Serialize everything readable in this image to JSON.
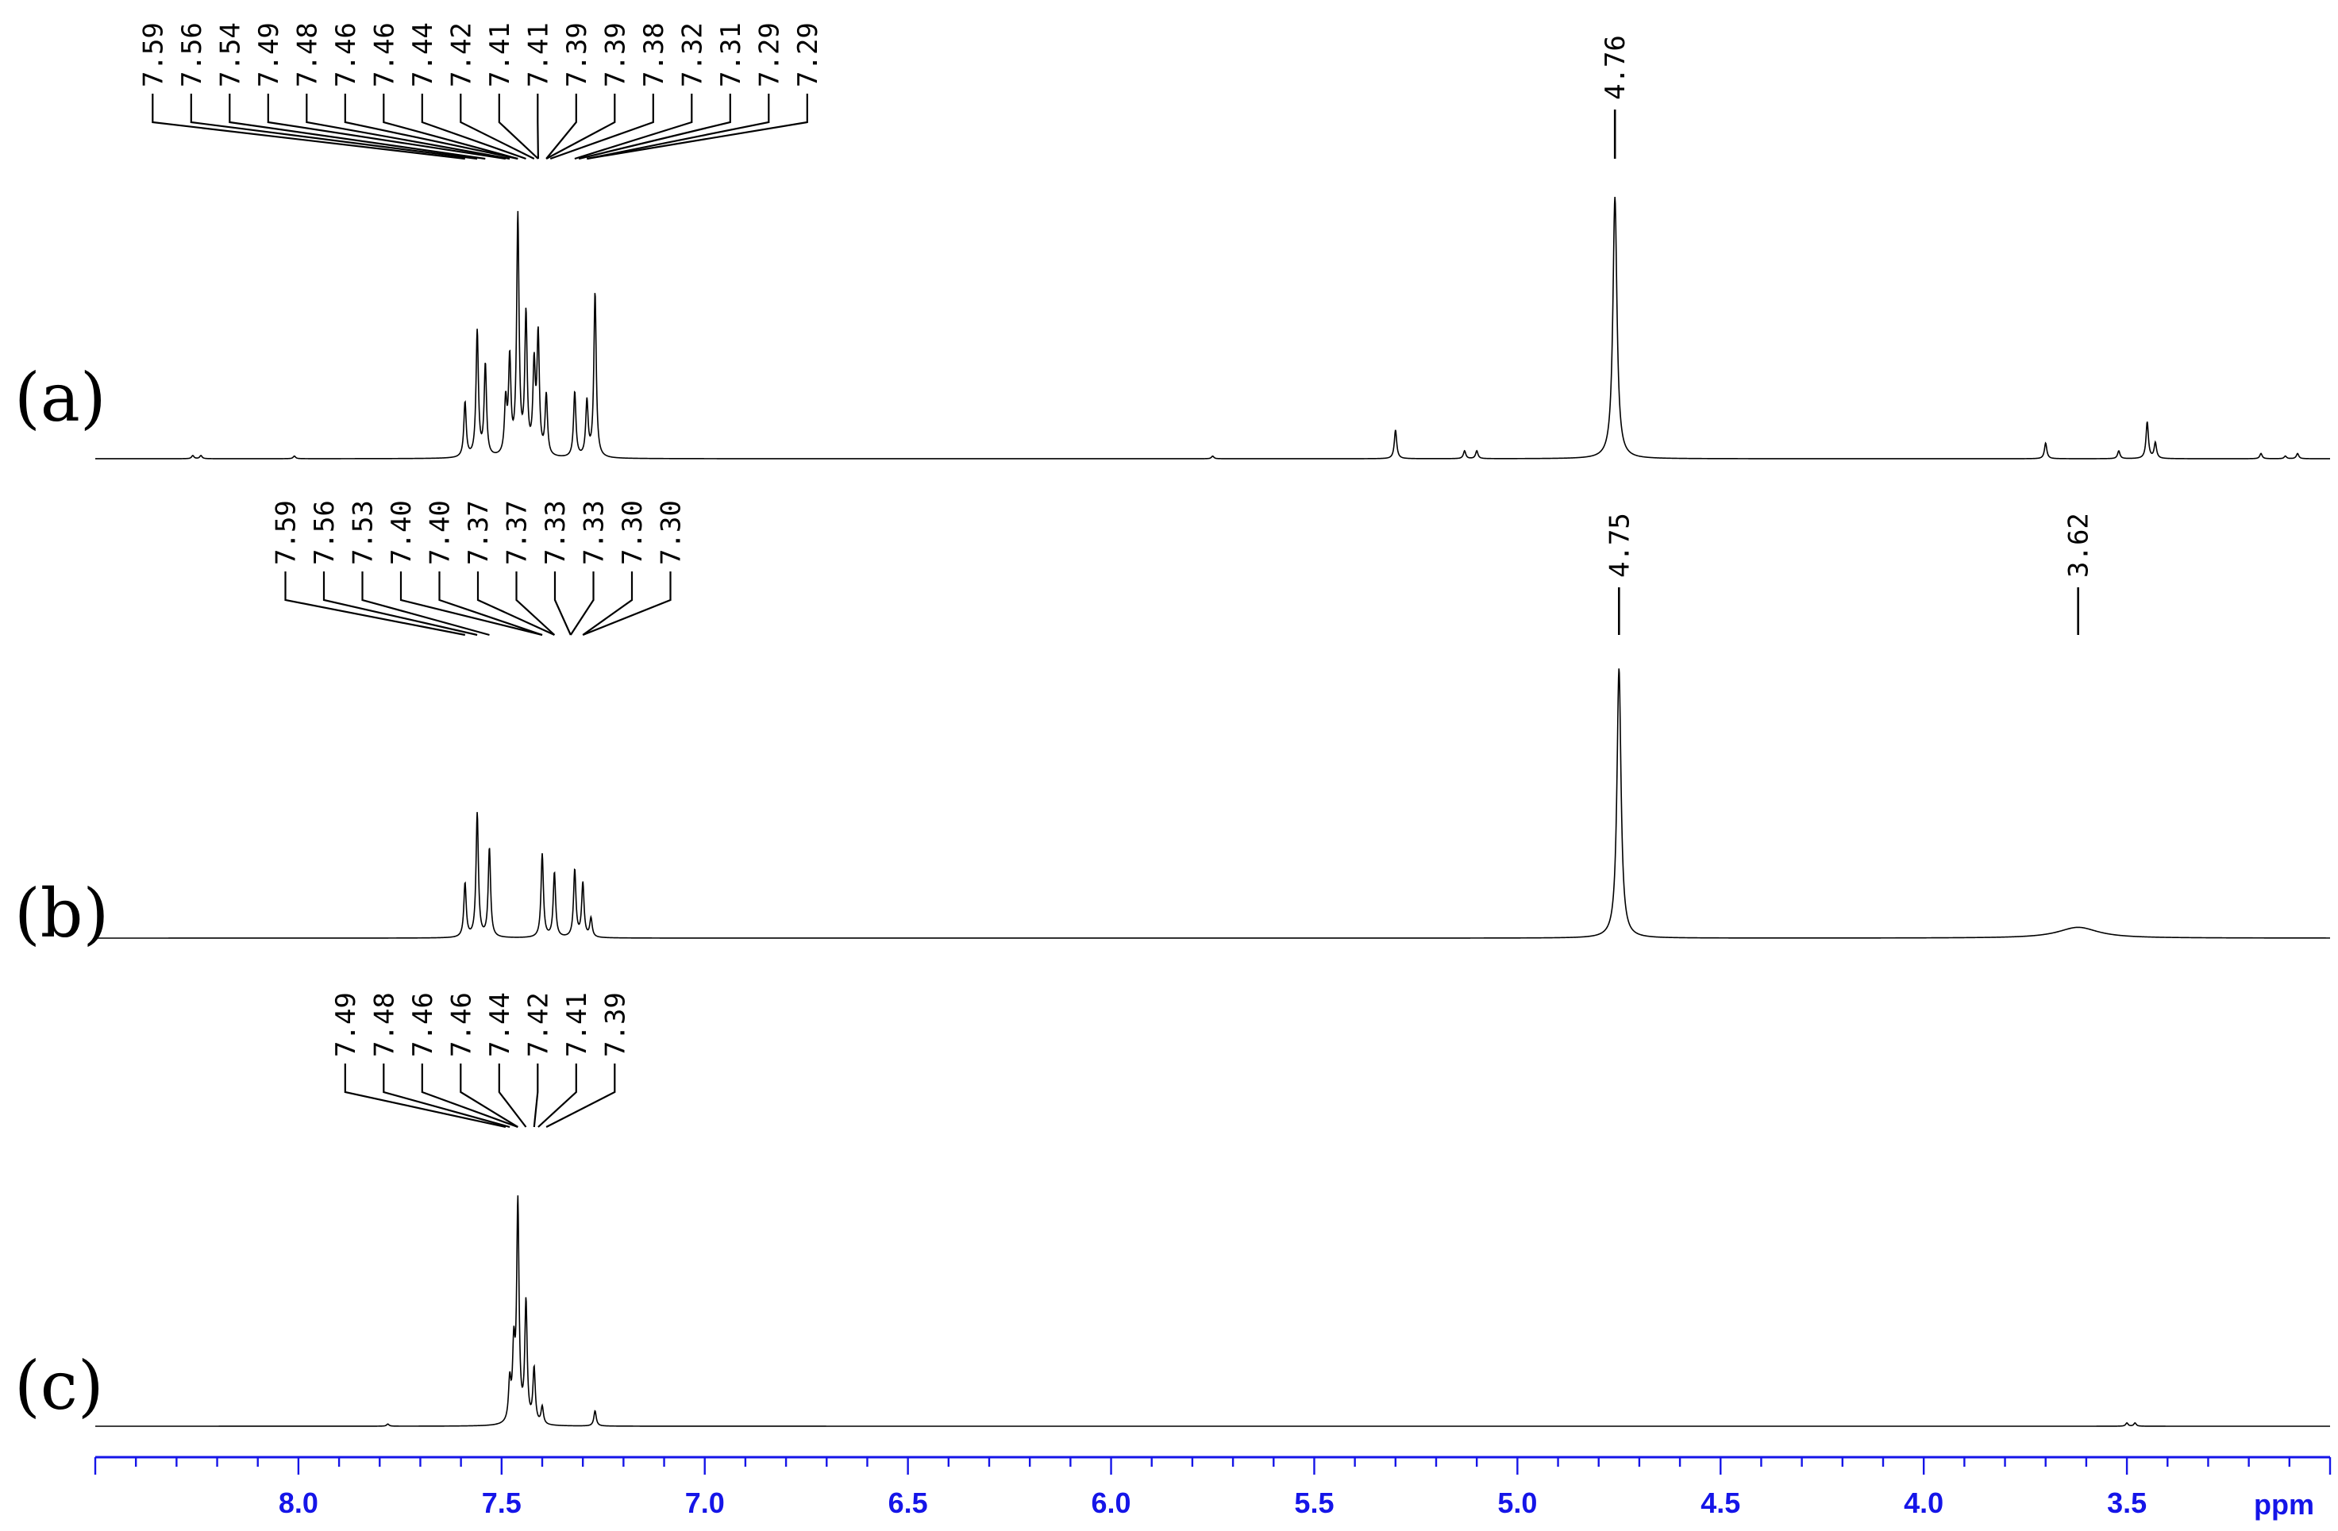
{
  "chart_data": {
    "type": "line",
    "title": "",
    "xlabel": "ppm",
    "ylabel": "",
    "xlim": [
      8.5,
      3.0
    ],
    "x_reversed": true,
    "grid": false,
    "x_ticks": [
      "8.0",
      "7.5",
      "7.0",
      "6.5",
      "6.0",
      "5.5",
      "5.0",
      "4.5",
      "4.0",
      "3.5"
    ],
    "x_tick_values": [
      8.0,
      7.5,
      7.0,
      6.5,
      6.0,
      5.5,
      5.0,
      4.5,
      4.0,
      3.5
    ],
    "axis_color": "#1515e8",
    "trace_color": "#000000",
    "panels": [
      {
        "label": "(a)",
        "peak_labels": [
          "7.59",
          "7.56",
          "7.54",
          "7.49",
          "7.48",
          "7.46",
          "7.46",
          "7.44",
          "7.42",
          "7.41",
          "7.41",
          "7.39",
          "7.39",
          "7.38",
          "7.32",
          "7.31",
          "7.29",
          "7.29",
          "4.76"
        ],
        "peaks": [
          {
            "ppm": 8.26,
            "height": 0.012
          },
          {
            "ppm": 8.24,
            "height": 0.012
          },
          {
            "ppm": 8.01,
            "height": 0.01
          },
          {
            "ppm": 7.59,
            "height": 0.21
          },
          {
            "ppm": 7.56,
            "height": 0.48
          },
          {
            "ppm": 7.54,
            "height": 0.35
          },
          {
            "ppm": 7.49,
            "height": 0.2
          },
          {
            "ppm": 7.48,
            "height": 0.36
          },
          {
            "ppm": 7.46,
            "height": 0.91
          },
          {
            "ppm": 7.44,
            "height": 0.53
          },
          {
            "ppm": 7.42,
            "height": 0.33
          },
          {
            "ppm": 7.41,
            "height": 0.45
          },
          {
            "ppm": 7.39,
            "height": 0.23
          },
          {
            "ppm": 7.32,
            "height": 0.25
          },
          {
            "ppm": 7.29,
            "height": 0.21
          },
          {
            "ppm": 7.27,
            "height": 0.63
          },
          {
            "ppm": 5.75,
            "height": 0.01
          },
          {
            "ppm": 5.3,
            "height": 0.11
          },
          {
            "ppm": 5.13,
            "height": 0.03
          },
          {
            "ppm": 5.1,
            "height": 0.03
          },
          {
            "ppm": 4.76,
            "height": 1.0,
            "width": 0.006
          },
          {
            "ppm": 3.7,
            "height": 0.06
          },
          {
            "ppm": 3.52,
            "height": 0.03
          },
          {
            "ppm": 3.45,
            "height": 0.14
          },
          {
            "ppm": 3.43,
            "height": 0.06
          },
          {
            "ppm": 3.17,
            "height": 0.02
          },
          {
            "ppm": 3.11,
            "height": 0.01
          },
          {
            "ppm": 3.08,
            "height": 0.02
          }
        ]
      },
      {
        "label": "(b)",
        "peak_labels": [
          "7.59",
          "7.56",
          "7.53",
          "7.40",
          "7.40",
          "7.37",
          "7.37",
          "7.33",
          "7.33",
          "7.30",
          "7.30",
          "4.75",
          "3.62"
        ],
        "peaks": [
          {
            "ppm": 7.59,
            "height": 0.2
          },
          {
            "ppm": 7.56,
            "height": 0.46
          },
          {
            "ppm": 7.53,
            "height": 0.33
          },
          {
            "ppm": 7.4,
            "height": 0.31
          },
          {
            "ppm": 7.37,
            "height": 0.24
          },
          {
            "ppm": 7.32,
            "height": 0.25
          },
          {
            "ppm": 7.3,
            "height": 0.2
          },
          {
            "ppm": 7.28,
            "height": 0.07
          },
          {
            "ppm": 4.75,
            "height": 1.0,
            "width": 0.006
          },
          {
            "ppm": 3.62,
            "height": 0.04,
            "width": 0.06
          }
        ]
      },
      {
        "label": "(c)",
        "peak_labels": [
          "7.49",
          "7.48",
          "7.46",
          "7.46",
          "7.44",
          "7.42",
          "7.41",
          "7.39"
        ],
        "peaks": [
          {
            "ppm": 7.48,
            "height": 0.18
          },
          {
            "ppm": 7.47,
            "height": 0.32
          },
          {
            "ppm": 7.46,
            "height": 1.0
          },
          {
            "ppm": 7.44,
            "height": 0.55
          },
          {
            "ppm": 7.42,
            "height": 0.25
          },
          {
            "ppm": 7.4,
            "height": 0.08
          },
          {
            "ppm": 7.27,
            "height": 0.07
          },
          {
            "ppm": 7.78,
            "height": 0.01
          },
          {
            "ppm": 3.5,
            "height": 0.015
          },
          {
            "ppm": 3.48,
            "height": 0.015
          }
        ]
      }
    ]
  }
}
